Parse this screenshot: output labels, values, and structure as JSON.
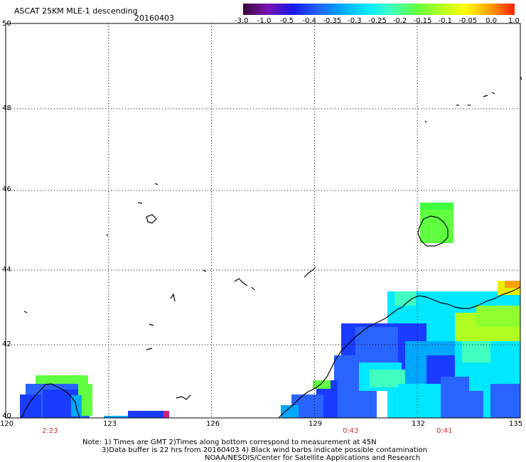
{
  "header": {
    "title": "ASCAT 25KM MLE-1 descending",
    "date": "20160403"
  },
  "colorbar": {
    "labels": [
      "-3.0",
      "-1.0",
      "-0.5",
      "-0.4",
      "-0.35",
      "-0.3",
      "-0.25",
      "-0.2",
      "-0.15",
      "-0.1",
      "-0.05",
      "0.0",
      "1.0"
    ],
    "colors": [
      "#3a0a3a",
      "#7a12b0",
      "#1818e8",
      "#2060ff",
      "#00a8ff",
      "#00e8ff",
      "#40ffc0",
      "#60ff40",
      "#b0ff20",
      "#ffff00",
      "#ffa000",
      "#ff2000"
    ]
  },
  "axes": {
    "lon_labels": [
      "120",
      "123",
      "126",
      "129",
      "132",
      "135"
    ],
    "lat_labels": [
      "50",
      "48",
      "46",
      "44",
      "42",
      "40"
    ]
  },
  "pass_times": [
    {
      "label": "2:23",
      "lon": 121.25
    },
    {
      "label": "0:43",
      "lon": 130.1
    },
    {
      "label": "0:41",
      "lon": 133.4
    }
  ],
  "notes": {
    "line1": "Note: 1) Times are GMT 2)Times along bottom correspond to measurement at 45N",
    "line2": "3)Data buffer is 22 hrs from 20160403 4) Black wind barbs indicate possible contamination",
    "line3": "NOAA/NESDIS/Center for Satellite Applications and Research"
  }
}
